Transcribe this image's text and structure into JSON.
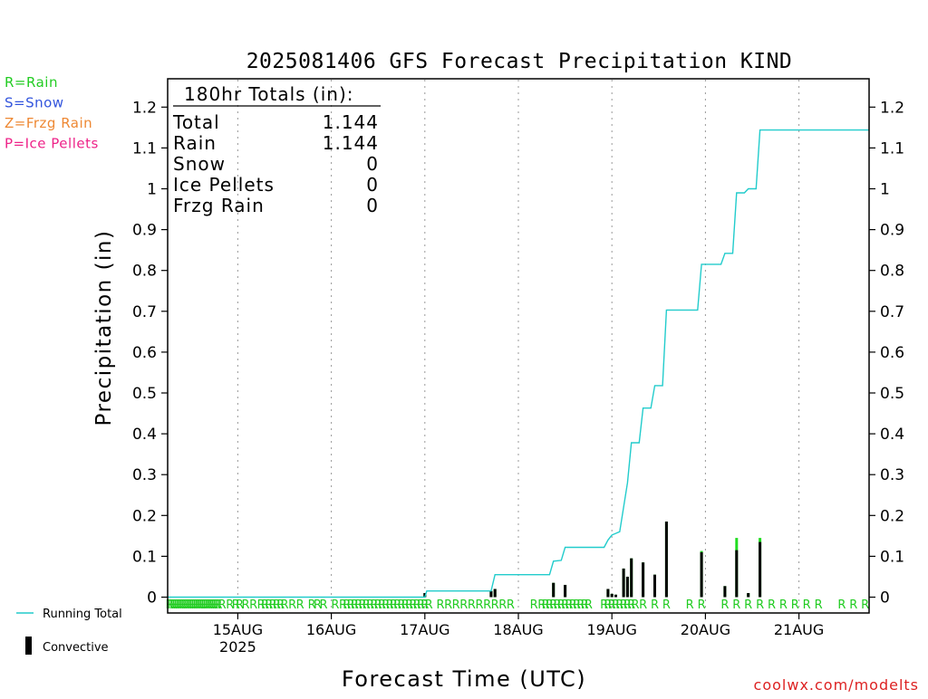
{
  "chart_data": {
    "type": "bar",
    "title": "2025081406 GFS Forecast Precipitation KIND",
    "xlabel": "Forecast Time (UTC)",
    "ylabel": "Precipitation (in)",
    "ylim": [
      0,
      1.25
    ],
    "y_ticks": [
      "0",
      "0.1",
      "0.2",
      "0.3",
      "0.4",
      "0.5",
      "0.6",
      "0.7",
      "0.8",
      "0.9",
      "1",
      "1.1",
      "1.2"
    ],
    "grid": "vertical dotted at day boundaries",
    "x_start": "14AUG 06Z",
    "x_end": "21AUG 18Z",
    "x_ticks": [
      {
        "label": "15AUG",
        "sub": "2025",
        "hours": 18
      },
      {
        "label": "16AUG",
        "sub": "",
        "hours": 42
      },
      {
        "label": "17AUG",
        "sub": "",
        "hours": 66
      },
      {
        "label": "18AUG",
        "sub": "",
        "hours": 90
      },
      {
        "label": "19AUG",
        "sub": "",
        "hours": 114
      },
      {
        "label": "20AUG",
        "sub": "",
        "hours": 138
      },
      {
        "label": "21AUG",
        "sub": "",
        "hours": 162
      }
    ],
    "legend": [
      {
        "label": "R=Rain",
        "color": "#22cc22"
      },
      {
        "label": "S=Snow",
        "color": "#3355dd"
      },
      {
        "label": "Z=Frzg Rain",
        "color": "#ee8833"
      },
      {
        "label": "P=Ice Pellets",
        "color": "#ee2288"
      }
    ],
    "series_legend": [
      {
        "label": "Running Total",
        "color": "#22cccc"
      },
      {
        "label": "Convective",
        "color": "#000000"
      }
    ],
    "totals": {
      "heading": "180hr Totals (in):",
      "rows": [
        {
          "label": "Total",
          "value": "1.144"
        },
        {
          "label": "Rain",
          "value": "1.144"
        },
        {
          "label": "Snow",
          "value": "0"
        },
        {
          "label": "Ice Pellets",
          "value": "0"
        },
        {
          "label": "Frzg Rain",
          "value": "0"
        }
      ]
    },
    "precip_bars": [
      {
        "x": 66,
        "value": 0.01,
        "convective": 0.01
      },
      {
        "x": 83,
        "value": 0.015,
        "convective": 0.015
      },
      {
        "x": 84,
        "value": 0.02,
        "convective": 0.02
      },
      {
        "x": 99,
        "value": 0.035,
        "convective": 0.035
      },
      {
        "x": 102,
        "value": 0.03,
        "convective": 0.03
      },
      {
        "x": 113,
        "value": 0.02,
        "convective": 0.02
      },
      {
        "x": 114,
        "value": 0.008,
        "convective": 0.008
      },
      {
        "x": 115,
        "value": 0.006,
        "convective": 0.006
      },
      {
        "x": 117,
        "value": 0.07,
        "convective": 0.07
      },
      {
        "x": 118,
        "value": 0.05,
        "convective": 0.05
      },
      {
        "x": 119,
        "value": 0.095,
        "convective": 0.095
      },
      {
        "x": 122,
        "value": 0.085,
        "convective": 0.085
      },
      {
        "x": 125,
        "value": 0.055,
        "convective": 0.055
      },
      {
        "x": 128,
        "value": 0.185,
        "convective": 0.185
      },
      {
        "x": 137,
        "value": 0.113,
        "convective": 0.11
      },
      {
        "x": 143,
        "value": 0.027,
        "convective": 0.027
      },
      {
        "x": 146,
        "value": 0.145,
        "convective": 0.115
      },
      {
        "x": 149,
        "value": 0.01,
        "convective": 0.01
      },
      {
        "x": 152,
        "value": 0.145,
        "convective": 0.135
      }
    ],
    "running_total": [
      [
        0,
        0
      ],
      [
        66,
        0
      ],
      [
        66.5,
        0.015
      ],
      [
        83,
        0.015
      ],
      [
        84,
        0.055
      ],
      [
        98,
        0.055
      ],
      [
        99,
        0.088
      ],
      [
        101,
        0.09
      ],
      [
        102,
        0.122
      ],
      [
        112,
        0.122
      ],
      [
        113,
        0.14
      ],
      [
        114,
        0.152
      ],
      [
        116,
        0.16
      ],
      [
        118,
        0.28
      ],
      [
        119,
        0.378
      ],
      [
        121,
        0.378
      ],
      [
        122,
        0.463
      ],
      [
        124,
        0.463
      ],
      [
        125,
        0.518
      ],
      [
        127,
        0.518
      ],
      [
        128,
        0.703
      ],
      [
        136,
        0.703
      ],
      [
        137,
        0.815
      ],
      [
        142,
        0.815
      ],
      [
        143,
        0.842
      ],
      [
        145,
        0.842
      ],
      [
        146,
        0.99
      ],
      [
        148,
        0.99
      ],
      [
        149,
        1.0
      ],
      [
        151,
        1.0
      ],
      [
        152,
        1.144
      ],
      [
        180,
        1.144
      ]
    ],
    "ptype_markers": [
      0.5,
      1,
      1.5,
      2,
      2.5,
      3,
      3.5,
      4,
      4.5,
      5,
      5.5,
      6,
      6.5,
      7,
      7.5,
      8,
      8.5,
      9,
      9.5,
      10,
      10.5,
      11,
      11.5,
      12,
      12.5,
      13,
      14,
      16,
      17.5,
      18.5,
      20,
      22,
      24,
      25,
      26,
      27,
      28,
      29,
      30,
      32,
      34,
      37,
      38.5,
      40,
      43,
      45,
      46,
      47,
      48,
      49,
      50,
      51,
      52,
      53,
      54,
      55,
      56,
      57,
      58,
      59,
      60,
      61,
      62,
      63,
      64,
      65,
      66,
      67,
      70,
      72,
      74,
      76,
      78,
      80,
      82,
      84,
      86,
      88,
      94,
      96,
      97,
      98,
      99,
      100,
      101,
      102,
      103,
      104,
      105,
      106,
      107,
      108,
      112,
      113,
      114,
      115,
      116,
      117,
      118,
      119,
      120,
      122,
      125,
      128,
      134,
      137,
      143,
      146,
      149,
      152,
      155,
      158,
      161,
      164,
      167,
      173,
      176,
      179
    ],
    "watermark": "coolwx.com/modelts"
  }
}
